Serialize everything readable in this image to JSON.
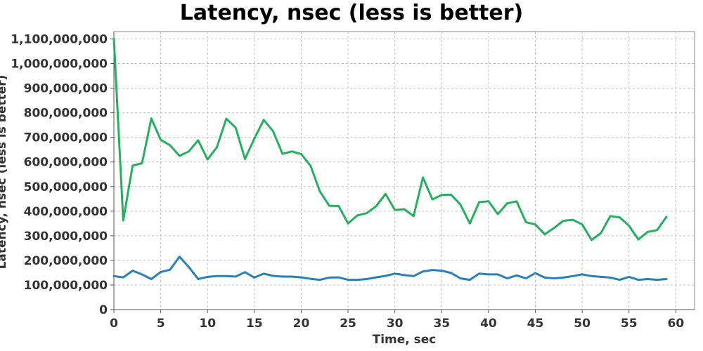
{
  "chart_data": {
    "type": "line",
    "title": "Latency, nsec (less is better)",
    "xlabel": "Time, sec",
    "ylabel": "Latency, nsec (less is better)",
    "xlim": [
      0,
      62
    ],
    "ylim": [
      0,
      1130000000
    ],
    "grid": true,
    "legend": "none",
    "x_ticks": [
      0,
      5,
      10,
      15,
      20,
      25,
      30,
      35,
      40,
      45,
      50,
      55,
      60
    ],
    "y_ticks": [
      0,
      100000000,
      200000000,
      300000000,
      400000000,
      500000000,
      600000000,
      700000000,
      800000000,
      900000000,
      1000000000,
      1100000000
    ],
    "y_tick_labels": [
      "0",
      "100,000,000",
      "200,000,000",
      "300,000,000",
      "400,000,000",
      "500,000,000",
      "600,000,000",
      "700,000,000",
      "800,000,000",
      "900,000,000",
      "1,000,000,000",
      "1,100,000,000"
    ],
    "x": [
      0,
      1,
      2,
      3,
      4,
      5,
      6,
      7,
      8,
      9,
      10,
      11,
      12,
      13,
      14,
      15,
      16,
      17,
      18,
      19,
      20,
      21,
      22,
      23,
      24,
      25,
      26,
      27,
      28,
      29,
      30,
      31,
      32,
      33,
      34,
      35,
      36,
      37,
      38,
      39,
      40,
      41,
      42,
      43,
      44,
      45,
      46,
      47,
      48,
      49,
      50,
      51,
      52,
      53,
      54,
      55,
      56,
      57,
      58,
      59
    ],
    "series": [
      {
        "color": "#27ae60",
        "values": [
          1100000000,
          362000000,
          585000000,
          595000000,
          777000000,
          690000000,
          668000000,
          625000000,
          643000000,
          688000000,
          610000000,
          660000000,
          776000000,
          740000000,
          612000000,
          695000000,
          771000000,
          725000000,
          633000000,
          643000000,
          632000000,
          584000000,
          480000000,
          422000000,
          421000000,
          350000000,
          383000000,
          392000000,
          420000000,
          470000000,
          405000000,
          408000000,
          380000000,
          537000000,
          448000000,
          466000000,
          467000000,
          427000000,
          350000000,
          437000000,
          440000000,
          388000000,
          432000000,
          440000000,
          355000000,
          346000000,
          306000000,
          332000000,
          361000000,
          365000000,
          346000000,
          283000000,
          311000000,
          380000000,
          375000000,
          341000000,
          285000000,
          316000000,
          323000000,
          377000000
        ]
      },
      {
        "color": "#2980b9",
        "values": [
          136000000,
          131000000,
          158000000,
          143000000,
          124000000,
          153000000,
          162000000,
          215000000,
          173000000,
          124000000,
          133000000,
          136000000,
          136000000,
          134000000,
          152000000,
          130000000,
          146000000,
          137000000,
          134000000,
          134000000,
          131000000,
          125000000,
          121000000,
          130000000,
          131000000,
          121000000,
          121000000,
          124000000,
          131000000,
          137000000,
          146000000,
          140000000,
          136000000,
          155000000,
          161000000,
          158000000,
          149000000,
          127000000,
          121000000,
          146000000,
          143000000,
          143000000,
          127000000,
          139000000,
          127000000,
          148000000,
          130000000,
          127000000,
          130000000,
          136000000,
          143000000,
          136000000,
          133000000,
          130000000,
          121000000,
          133000000,
          121000000,
          124000000,
          121000000,
          124000000
        ]
      }
    ]
  }
}
